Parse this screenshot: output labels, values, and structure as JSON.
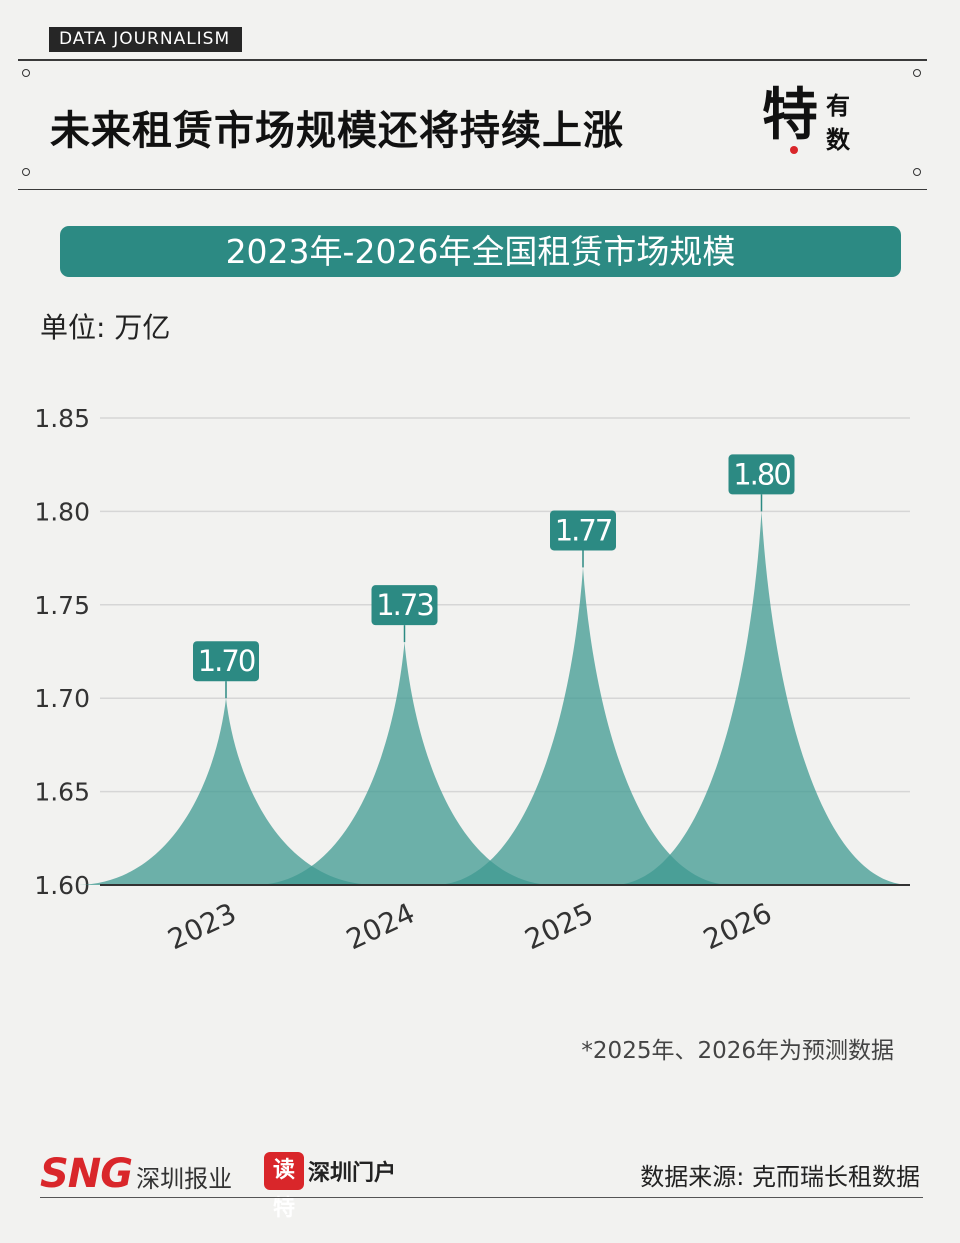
{
  "header": {
    "tag": "DATA JOURNALISM",
    "headline": "未来租赁市场规模还将持续上涨",
    "brand_main": "特",
    "brand_top": "有",
    "brand_bottom": "数"
  },
  "banner": {
    "title": "2023年-2026年全国租赁市场规模"
  },
  "unit_label": "单位: 万亿",
  "note": "*2025年、2026年为预测数据",
  "footer": {
    "sng": "SNG",
    "sng_sub": "深圳报业",
    "dute": "读特",
    "portal": "深圳门户",
    "source": "数据来源: 克而瑞长租数据"
  },
  "colors": {
    "teal": "#2c8a83",
    "peak_fill": "#3f9a92",
    "grid": "#d6d6d6",
    "axis": "#333333"
  },
  "chart_data": {
    "type": "area",
    "title": "2023年-2026年全国租赁市场规模",
    "ylabel": "单位: 万亿",
    "categories": [
      "2023",
      "2024",
      "2025",
      "2026"
    ],
    "values": [
      1.7,
      1.73,
      1.77,
      1.8
    ],
    "labels": [
      "1.70",
      "1.73",
      "1.77",
      "1.80"
    ],
    "ylim": [
      1.6,
      1.85
    ],
    "yticks": [
      1.6,
      1.65,
      1.7,
      1.75,
      1.8,
      1.85
    ],
    "ytick_labels": [
      "1.60",
      "1.65",
      "1.70",
      "1.75",
      "1.80",
      "1.85"
    ],
    "grid": true
  }
}
